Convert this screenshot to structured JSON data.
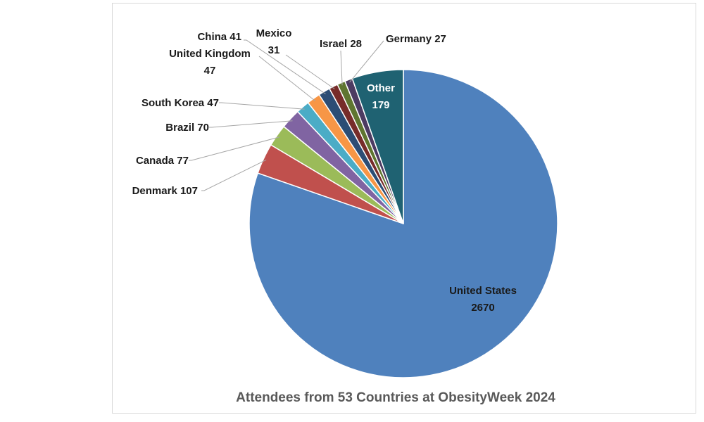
{
  "chart_data": {
    "type": "pie",
    "title": "Attendees from 53 Countries at ObesityWeek 2024",
    "slices": [
      {
        "name": "United States",
        "value": 2670,
        "label": "United States 2670",
        "color": "#4f81bd"
      },
      {
        "name": "Denmark",
        "value": 107,
        "label": "Denmark  107",
        "color": "#c0504d"
      },
      {
        "name": "Canada",
        "value": 77,
        "label": "Canada 77",
        "color": "#9bbb59"
      },
      {
        "name": "Brazil",
        "value": 70,
        "label": "Brazil 70",
        "color": "#8064a2"
      },
      {
        "name": "South Korea",
        "value": 47,
        "label": "South Korea 47",
        "color": "#4bacc6"
      },
      {
        "name": "United Kingdom",
        "value": 47,
        "label": "United Kingdom 47",
        "color": "#f79646"
      },
      {
        "name": "China",
        "value": 41,
        "label": "China 41",
        "color": "#2c4d75"
      },
      {
        "name": "Mexico",
        "value": 31,
        "label": "Mexico 31",
        "color": "#772c2a"
      },
      {
        "name": "Israel",
        "value": 28,
        "label": "Israel 28",
        "color": "#5f7530"
      },
      {
        "name": "Germany",
        "value": 27,
        "label": "Germany 27",
        "color": "#4d3b62"
      },
      {
        "name": "Other",
        "value": 179,
        "label": "Other 179",
        "color": "#1f6272"
      }
    ],
    "start_angle_deg": 0,
    "direction": "counterclockwise"
  }
}
